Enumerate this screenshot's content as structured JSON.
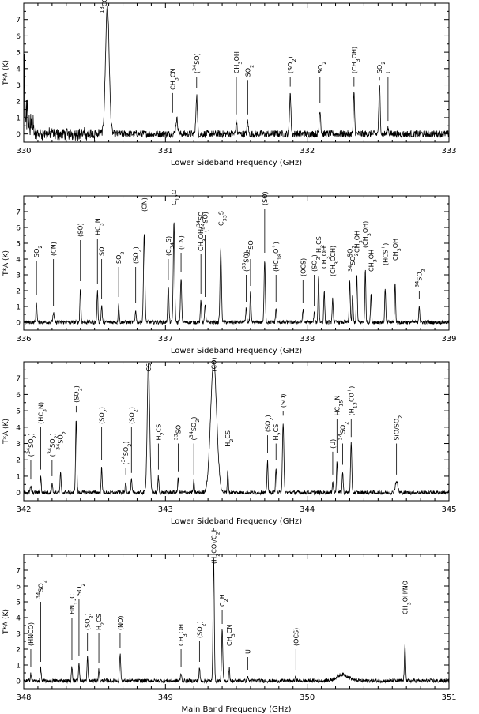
{
  "chart_data": [
    {
      "type": "line",
      "xlabel": "Lower Sideband Frequency (GHz)",
      "ylabel": "T*A (K)",
      "xlim": [
        330,
        333
      ],
      "ylim": [
        -0.5,
        8
      ],
      "x_ticks": [
        "330",
        "331",
        "332",
        "333"
      ],
      "y_ticks": [
        "0",
        "1",
        "2",
        "3",
        "4",
        "5",
        "6",
        "7"
      ],
      "peaks": [
        {
          "label": "13CO",
          "freq": 330.59,
          "height": 7.9,
          "width": 0.018
        },
        {
          "label": "CH3CN",
          "freq": 331.08,
          "height": 0.9,
          "width": 0.01
        },
        {
          "label": "(34SO)",
          "freq": 331.22,
          "height": 2.4,
          "width": 0.007
        },
        {
          "label": "CH3OH",
          "freq": 331.5,
          "height": 0.8,
          "width": 0.006
        },
        {
          "label": "SO2",
          "freq": 331.58,
          "height": 0.8,
          "width": 0.006
        },
        {
          "label": "(SO2)",
          "freq": 331.88,
          "height": 2.5,
          "width": 0.007
        },
        {
          "label": "SO2",
          "freq": 332.09,
          "height": 1.5,
          "width": 0.007
        },
        {
          "label": "(CH3OH)",
          "freq": 332.33,
          "height": 2.5,
          "width": 0.006
        },
        {
          "label": "SO2",
          "freq": 332.51,
          "height": 2.9,
          "width": 0.007
        },
        {
          "label": "U",
          "freq": 332.57,
          "height": 0.4,
          "width": 0.006
        }
      ],
      "annotations": [
        {
          "text": "13CO",
          "freq": 330.57,
          "line_top": null
        },
        {
          "text": "CH3CN",
          "freq": 331.05,
          "line_top": 2.5
        },
        {
          "text": "(34SO)",
          "freq": 331.22,
          "line_top": 3.5
        },
        {
          "text": "CH3OH",
          "freq": 331.5,
          "line_top": 3.5
        },
        {
          "text": "SO2",
          "freq": 331.58,
          "line_top": 3.3
        },
        {
          "text": "(SO2)",
          "freq": 331.88,
          "line_top": 3.5
        },
        {
          "text": "SO2",
          "freq": 332.09,
          "line_top": 3.5
        },
        {
          "text": "(CH3OH)",
          "freq": 332.33,
          "line_top": 3.5
        },
        {
          "text": "SO2",
          "freq": 332.51,
          "line_top": 3.5
        },
        {
          "text": "U",
          "freq": 332.57,
          "line_top": 3.5
        }
      ]
    },
    {
      "type": "line",
      "xlabel": "Lower Sideband Frequency (GHz)",
      "ylabel": "T*A (K)",
      "xlim": [
        336,
        339
      ],
      "ylim": [
        -0.5,
        8
      ],
      "x_ticks": [
        "336",
        "337",
        "338",
        "339"
      ],
      "y_ticks": [
        "0",
        "1",
        "2",
        "3",
        "4",
        "5",
        "6",
        "7"
      ],
      "peaks": [
        {
          "label": "SO2",
          "freq": 336.09,
          "height": 1.3,
          "width": 0.005
        },
        {
          "label": "(CN)",
          "freq": 336.21,
          "height": 0.6,
          "width": 0.006
        },
        {
          "label": "(SO)",
          "freq": 336.4,
          "height": 2.2,
          "width": 0.005
        },
        {
          "label": "HC3N",
          "freq": 336.52,
          "height": 2.0,
          "width": 0.005
        },
        {
          "label": "SO",
          "freq": 336.55,
          "height": 1.1,
          "width": 0.005
        },
        {
          "label": "SO2",
          "freq": 336.67,
          "height": 1.2,
          "width": 0.005
        },
        {
          "label": "(SO2)",
          "freq": 336.79,
          "height": 0.8,
          "width": 0.005
        },
        {
          "label": "(CN)",
          "freq": 336.85,
          "height": 5.6,
          "width": 0.007
        },
        {
          "label": "(C34S)",
          "freq": 337.02,
          "height": 2.3,
          "width": 0.006
        },
        {
          "label": "C17O",
          "freq": 337.06,
          "height": 6.3,
          "width": 0.007
        },
        {
          "label": "(CN)",
          "freq": 337.11,
          "height": 2.8,
          "width": 0.006
        },
        {
          "label": "CH3OH/34SO",
          "freq": 337.25,
          "height": 1.4,
          "width": 0.005
        },
        {
          "label": "(34SO)",
          "freq": 337.28,
          "height": 1.2,
          "width": 0.005
        },
        {
          "label": "C33S",
          "freq": 337.39,
          "height": 4.7,
          "width": 0.007
        },
        {
          "label": "(33SO)",
          "freq": 337.57,
          "height": 0.9,
          "width": 0.005
        },
        {
          "label": "33SO",
          "freq": 337.6,
          "height": 1.9,
          "width": 0.005
        },
        {
          "label": "(SO)",
          "freq": 337.7,
          "height": 4.0,
          "width": 0.006
        },
        {
          "label": "(HC18O+)",
          "freq": 337.78,
          "height": 0.9,
          "width": 0.005
        },
        {
          "label": "(OCS)",
          "freq": 337.97,
          "height": 0.8,
          "width": 0.005
        },
        {
          "label": "(SO2)",
          "freq": 338.05,
          "height": 0.6,
          "width": 0.005
        },
        {
          "label": "H2CS",
          "freq": 338.08,
          "height": 3.0,
          "width": 0.005
        },
        {
          "label": "CH3OH",
          "freq": 338.12,
          "height": 2.0,
          "width": 0.005
        },
        {
          "label": "(CH3CCH)",
          "freq": 338.18,
          "height": 1.5,
          "width": 0.005
        },
        {
          "label": "SO2",
          "freq": 338.3,
          "height": 2.7,
          "width": 0.005
        },
        {
          "label": "34SO2",
          "freq": 338.32,
          "height": 1.8,
          "width": 0.005
        },
        {
          "label": "CH3OH",
          "freq": 338.35,
          "height": 3.0,
          "width": 0.005
        },
        {
          "label": "(CH3OH)",
          "freq": 338.41,
          "height": 3.3,
          "width": 0.005
        },
        {
          "label": "CH3OH",
          "freq": 338.45,
          "height": 1.8,
          "width": 0.005
        },
        {
          "label": "(HCS+)",
          "freq": 338.55,
          "height": 2.2,
          "width": 0.005
        },
        {
          "label": "CH3OH",
          "freq": 338.62,
          "height": 2.5,
          "width": 0.005
        },
        {
          "label": "34SO2",
          "freq": 338.79,
          "height": 1.1,
          "width": 0.005
        }
      ],
      "annotations": [
        {
          "text": "SO2",
          "freq": 336.09,
          "line_top": 3.9
        },
        {
          "text": "(CN)",
          "freq": 336.21,
          "line_top": 4.0
        },
        {
          "text": "(SO)",
          "freq": 336.4,
          "line_top": 5.2
        },
        {
          "text": "HC3N",
          "freq": 336.52,
          "line_top": 5.3
        },
        {
          "text": "SO",
          "freq": 336.55,
          "line_top": 4.0
        },
        {
          "text": "SO2",
          "freq": 336.67,
          "line_top": 3.5
        },
        {
          "text": "(SO2)",
          "freq": 336.79,
          "line_top": 3.5
        },
        {
          "text": "(CN)",
          "freq": 336.85,
          "line_top": null
        },
        {
          "text": "(C34S)",
          "freq": 337.02,
          "line_top": 4.0
        },
        {
          "text": "C17O",
          "freq": 337.06,
          "line_top": null
        },
        {
          "text": "(CN)",
          "freq": 337.11,
          "line_top": 4.4
        },
        {
          "text": "CH3OH/34SO",
          "freq": 337.25,
          "line_top": 4.3
        },
        {
          "text": "(34SO)",
          "freq": 337.28,
          "line_top": 5.5
        },
        {
          "text": "C33S",
          "freq": 337.39,
          "line_top": null
        },
        {
          "text": "(33SO)",
          "freq": 337.57,
          "line_top": 3.0
        },
        {
          "text": "33SO",
          "freq": 337.6,
          "line_top": 4.0
        },
        {
          "text": "(SO)",
          "freq": 337.7,
          "line_top": 7.2
        },
        {
          "text": "(HC18O+)",
          "freq": 337.78,
          "line_top": 3.0
        },
        {
          "text": "(OCS)",
          "freq": 337.97,
          "line_top": 2.7
        },
        {
          "text": "(SO2)",
          "freq": 338.05,
          "line_top": 3.0
        },
        {
          "text": "H2CS",
          "freq": 338.08,
          "line_top": null
        },
        {
          "text": "CH3OH",
          "freq": 338.12,
          "line_top": null
        },
        {
          "text": "(CH3CCH)",
          "freq": 338.18,
          "line_top": null
        },
        {
          "text": "SO2",
          "freq": 338.3,
          "line_top": null
        },
        {
          "text": "34SO2",
          "freq": 338.32,
          "line_top": null
        },
        {
          "text": "CH3OH",
          "freq": 338.35,
          "line_top": null
        },
        {
          "text": "(CH3OH)",
          "freq": 338.41,
          "line_top": null
        },
        {
          "text": "CH3OH",
          "freq": 338.45,
          "line_top": null
        },
        {
          "text": "(HCS+)",
          "freq": 338.55,
          "line_top": null
        },
        {
          "text": "CH3OH",
          "freq": 338.62,
          "line_top": null
        },
        {
          "text": "34SO2",
          "freq": 338.79,
          "line_top": 2.0
        }
      ]
    },
    {
      "type": "line",
      "xlabel": "Lower Sideband Frequency (GHz)",
      "ylabel": "T*A (K)",
      "xlim": [
        342,
        345
      ],
      "ylim": [
        -0.5,
        8
      ],
      "x_ticks": [
        "342",
        "343",
        "344",
        "345"
      ],
      "y_ticks": [
        "0",
        "1",
        "2",
        "3",
        "4",
        "5",
        "6",
        "7"
      ],
      "peaks": [
        {
          "label": "(34SO2)",
          "freq": 342.05,
          "height": 0.4,
          "width": 0.005
        },
        {
          "label": "(HC3N)",
          "freq": 342.12,
          "height": 1.0,
          "width": 0.005
        },
        {
          "label": "(34SO2)",
          "freq": 342.2,
          "height": 0.6,
          "width": 0.005
        },
        {
          "label": "34SO2",
          "freq": 342.26,
          "height": 1.2,
          "width": 0.005
        },
        {
          "label": "(SO2)",
          "freq": 342.37,
          "height": 4.5,
          "width": 0.006
        },
        {
          "label": "(SO2)",
          "freq": 342.55,
          "height": 1.6,
          "width": 0.005
        },
        {
          "label": "(34SO2)",
          "freq": 342.72,
          "height": 0.7,
          "width": 0.005
        },
        {
          "label": "(SO2)",
          "freq": 342.76,
          "height": 0.8,
          "width": 0.005
        },
        {
          "label": "CS",
          "freq": 342.88,
          "height": 8.0,
          "width": 0.012
        },
        {
          "label": "H2CS",
          "freq": 342.95,
          "height": 1.0,
          "width": 0.005
        },
        {
          "label": "33SO",
          "freq": 343.09,
          "height": 0.9,
          "width": 0.005
        },
        {
          "label": "(34SO2)",
          "freq": 343.2,
          "height": 0.7,
          "width": 0.005
        },
        {
          "label": "(CO)",
          "freq": 343.34,
          "height": 8.0,
          "width": 0.03
        },
        {
          "label": "H2CS",
          "freq": 343.44,
          "height": 1.4,
          "width": 0.005
        },
        {
          "label": "(SO2)",
          "freq": 343.72,
          "height": 2.0,
          "width": 0.005
        },
        {
          "label": "H2CS",
          "freq": 343.78,
          "height": 1.6,
          "width": 0.005
        },
        {
          "label": "(SO)",
          "freq": 343.83,
          "height": 4.3,
          "width": 0.007
        },
        {
          "label": "(U)",
          "freq": 344.18,
          "height": 0.7,
          "width": 0.005
        },
        {
          "label": "HC15N",
          "freq": 344.21,
          "height": 2.0,
          "width": 0.005
        },
        {
          "label": "34SO2",
          "freq": 344.25,
          "height": 1.3,
          "width": 0.005
        },
        {
          "label": "(H13CO+)",
          "freq": 344.31,
          "height": 3.0,
          "width": 0.006
        },
        {
          "label": "SiO/SO2",
          "freq": 344.63,
          "height": 0.7,
          "width": 0.012
        }
      ],
      "annotations": [
        {
          "text": "(34SO2)",
          "freq": 342.05,
          "line_top": 2.0
        },
        {
          "text": "(HC3N)",
          "freq": 342.12,
          "line_top": 4.0
        },
        {
          "text": "(34SO2)",
          "freq": 342.2,
          "line_top": 2.0
        },
        {
          "text": "34SO2",
          "freq": 342.26,
          "line_top": null
        },
        {
          "text": "(SO2)",
          "freq": 342.37,
          "line_top": 5.3
        },
        {
          "text": "(SO2)",
          "freq": 342.55,
          "line_top": 4.0
        },
        {
          "text": "(34SO2)",
          "freq": 342.72,
          "line_top": 1.5
        },
        {
          "text": "(SO2)",
          "freq": 342.76,
          "line_top": 4.0
        },
        {
          "text": "CS",
          "freq": 342.88,
          "line_top": null
        },
        {
          "text": "H2CS",
          "freq": 342.95,
          "line_top": 3.0
        },
        {
          "text": "33SO",
          "freq": 343.09,
          "line_top": 3.0
        },
        {
          "text": "(34SO2)",
          "freq": 343.2,
          "line_top": 3.0
        },
        {
          "text": "(CO)",
          "freq": 343.34,
          "line_top": null
        },
        {
          "text": "H2CS",
          "freq": 343.44,
          "line_top": null
        },
        {
          "text": "(SO2)",
          "freq": 343.72,
          "line_top": 3.5
        },
        {
          "text": "H2CS",
          "freq": 343.78,
          "line_top": 3.0
        },
        {
          "text": "(SO)",
          "freq": 343.83,
          "line_top": 5.0
        },
        {
          "text": "(U)",
          "freq": 344.18,
          "line_top": 2.5
        },
        {
          "text": "HC15N",
          "freq": 344.21,
          "line_top": 4.5
        },
        {
          "text": "34SO2",
          "freq": 344.25,
          "line_top": 3.0
        },
        {
          "text": "(H13CO+)",
          "freq": 344.31,
          "line_top": 4.5
        },
        {
          "text": "SiO/SO2",
          "freq": 344.63,
          "line_top": 3.0
        }
      ]
    },
    {
      "type": "line",
      "xlabel": "Main Band Frequency (GHz)",
      "ylabel": "T*A (K)",
      "xlim": [
        348,
        351
      ],
      "ylim": [
        -0.5,
        8
      ],
      "x_ticks": [
        "348",
        "349",
        "350",
        "351"
      ],
      "y_ticks": [
        "0",
        "1",
        "2",
        "3",
        "4",
        "5",
        "6",
        "7"
      ],
      "peaks": [
        {
          "label": "(HNCO)",
          "freq": 348.05,
          "height": 0.5,
          "width": 0.005
        },
        {
          "label": "34SO2",
          "freq": 348.12,
          "height": 0.8,
          "width": 0.005
        },
        {
          "label": "HN13C",
          "freq": 348.34,
          "height": 0.9,
          "width": 0.005
        },
        {
          "label": "SO2",
          "freq": 348.39,
          "height": 1.2,
          "width": 0.005
        },
        {
          "label": "(SO2)",
          "freq": 348.45,
          "height": 1.5,
          "width": 0.005
        },
        {
          "label": "H2CS",
          "freq": 348.53,
          "height": 0.7,
          "width": 0.005
        },
        {
          "label": "(NO)",
          "freq": 348.68,
          "height": 1.7,
          "width": 0.006
        },
        {
          "label": "CH3OH",
          "freq": 349.11,
          "height": 0.5,
          "width": 0.005
        },
        {
          "label": "(SO2)",
          "freq": 349.24,
          "height": 0.8,
          "width": 0.005
        },
        {
          "label": "(H2CO)/C2H",
          "freq": 349.34,
          "height": 8.0,
          "width": 0.006
        },
        {
          "label": "C2H",
          "freq": 349.4,
          "height": 3.2,
          "width": 0.006
        },
        {
          "label": "CH3CN",
          "freq": 349.45,
          "height": 0.8,
          "width": 0.005
        },
        {
          "label": "U",
          "freq": 349.58,
          "height": 0.3,
          "width": 0.005
        },
        {
          "label": "(OCS)",
          "freq": 349.92,
          "height": 0.3,
          "width": 0.005
        },
        {
          "label": "CH3OH/NO",
          "freq": 350.69,
          "height": 2.2,
          "width": 0.006
        }
      ],
      "annotations": [
        {
          "text": "(HNCO)",
          "freq": 348.05,
          "line_top": 2.0
        },
        {
          "text": "34SO2",
          "freq": 348.12,
          "line_top": 5.0
        },
        {
          "text": "HN13C",
          "freq": 348.34,
          "line_top": 4.0
        },
        {
          "text": "SO2",
          "freq": 348.39,
          "line_top": 5.2
        },
        {
          "text": "(SO2)",
          "freq": 348.45,
          "line_top": 3.0
        },
        {
          "text": "H2CS",
          "freq": 348.53,
          "line_top": 3.0
        },
        {
          "text": "(NO)",
          "freq": 348.68,
          "line_top": 3.0
        },
        {
          "text": "CH3OH",
          "freq": 349.11,
          "line_top": 2.0
        },
        {
          "text": "(SO2)",
          "freq": 349.24,
          "line_top": 2.5
        },
        {
          "text": "(H2CO)/C2H",
          "freq": 349.34,
          "line_top": null
        },
        {
          "text": "C2H",
          "freq": 349.4,
          "line_top": 4.5
        },
        {
          "text": "CH3CN",
          "freq": 349.45,
          "line_top": null
        },
        {
          "text": "U",
          "freq": 349.58,
          "line_top": 1.5
        },
        {
          "text": "(OCS)",
          "freq": 349.92,
          "line_top": 2.0
        },
        {
          "text": "CH3OH/NO",
          "freq": 350.69,
          "line_top": 4.0
        }
      ]
    }
  ]
}
